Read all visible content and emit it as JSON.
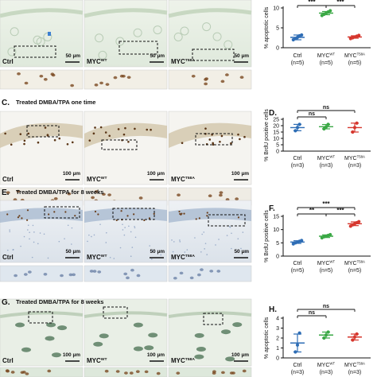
{
  "rows": [
    {
      "panels": [
        {
          "label": "Ctrl",
          "scale": "50 µm"
        },
        {
          "label": "MYC",
          "sup": "WT",
          "scale": "50 µm"
        },
        {
          "label": "MYC",
          "sup": "T58A",
          "scale": "50 µm"
        }
      ]
    },
    {
      "letter": "C.",
      "caption": "Treated DMBA/TPA one time",
      "panels": [
        {
          "label": "Ctrl",
          "scale": "100 µm"
        },
        {
          "label": "MYC",
          "sup": "WT",
          "scale": "100 µm"
        },
        {
          "label": "MYC",
          "sup": "T58A",
          "scale": "100 µm"
        }
      ]
    },
    {
      "letter": "E.",
      "caption": "Treated DMBA/TPA for 8 weeks",
      "panels": [
        {
          "label": "Ctrl",
          "scale": "50 µm"
        },
        {
          "label": "MYC",
          "sup": "WT",
          "scale": "50 µm"
        },
        {
          "label": "MYC",
          "sup": "T58A",
          "scale": "50 µm"
        }
      ]
    },
    {
      "letter": "G.",
      "caption": "Treated DMBA/TPA for 8 weeks",
      "panels": [
        {
          "label": "Ctrl",
          "scale": "100 µm"
        },
        {
          "label": "MYC",
          "sup": "WT",
          "scale": "100 µm"
        },
        {
          "label": "MYC",
          "sup": "T58A",
          "scale": "100 µm"
        }
      ]
    }
  ],
  "colors": {
    "ctrl": "#2e6db5",
    "wt": "#3aa845",
    "t58a": "#d6372e"
  },
  "chart_data": [
    {
      "type": "scatter",
      "ylabel": "% apoptotic cells",
      "ylim": [
        0,
        10
      ],
      "yticks": [
        "0",
        "5",
        "10"
      ],
      "groups": [
        {
          "name": "Ctrl",
          "n": "(n=5)",
          "mean": 2.6,
          "err": 0.6,
          "points": [
            2.0,
            2.3,
            2.6,
            3.0,
            3.2
          ]
        },
        {
          "name": "MYC",
          "sup": "WT",
          "n": "(n=5)",
          "mean": 8.7,
          "err": 0.4,
          "points": [
            8.1,
            8.4,
            8.7,
            9.0,
            9.3
          ]
        },
        {
          "name": "MYC",
          "sup": "T58A",
          "n": "(n=5)",
          "mean": 2.7,
          "err": 0.3,
          "points": [
            2.3,
            2.5,
            2.7,
            2.9,
            3.1
          ]
        }
      ],
      "sig": [
        {
          "a": 0,
          "b": 1,
          "text": "***"
        },
        {
          "a": 1,
          "b": 2,
          "text": "***"
        }
      ]
    },
    {
      "letter": "D.",
      "type": "scatter",
      "ylabel": "% BrdU positive cells",
      "ylim": [
        0,
        25
      ],
      "yticks": [
        "0",
        "5",
        "10",
        "15",
        "20",
        "25"
      ],
      "groups": [
        {
          "name": "Ctrl",
          "n": "(n=3)",
          "mean": 18.5,
          "err": 2.5,
          "points": [
            16.0,
            18.5,
            21.0
          ]
        },
        {
          "name": "MYC",
          "sup": "WT",
          "n": "(n=3)",
          "mean": 19.2,
          "err": 1.7,
          "points": [
            17.5,
            19.0,
            21.0
          ]
        },
        {
          "name": "MYC",
          "sup": "T58A",
          "n": "(n=3)",
          "mean": 18.5,
          "err": 3.5,
          "points": [
            15.0,
            18.5,
            22.0
          ]
        }
      ],
      "sig": [
        {
          "a": 0,
          "b": 1,
          "text": "ns"
        },
        {
          "a": 0,
          "b": 2,
          "text": "ns"
        }
      ]
    },
    {
      "letter": "F.",
      "type": "scatter",
      "ylabel": "% BrdU positive cells",
      "ylim": [
        0,
        15
      ],
      "yticks": [
        "0",
        "5",
        "10",
        "15"
      ],
      "groups": [
        {
          "name": "Ctrl",
          "n": "(n=5)",
          "mean": 5.3,
          "err": 0.5,
          "points": [
            4.6,
            5.0,
            5.3,
            5.6,
            5.9
          ]
        },
        {
          "name": "MYC",
          "sup": "WT",
          "n": "(n=5)",
          "mean": 7.5,
          "err": 0.5,
          "points": [
            6.9,
            7.3,
            7.5,
            7.8,
            8.1
          ]
        },
        {
          "name": "MYC",
          "sup": "T58A",
          "n": "(n=5)",
          "mean": 12.2,
          "err": 0.7,
          "points": [
            11.3,
            11.8,
            12.2,
            12.6,
            13.0
          ]
        }
      ],
      "sig": [
        {
          "a": 0,
          "b": 1,
          "text": "**"
        },
        {
          "a": 1,
          "b": 2,
          "text": "***"
        },
        {
          "a": 0,
          "b": 2,
          "text": "***"
        }
      ]
    },
    {
      "letter": "H.",
      "type": "scatter",
      "ylabel": "% apoptotic cells",
      "ylim": [
        0,
        4
      ],
      "yticks": [
        "0",
        "1",
        "2",
        "3",
        "4"
      ],
      "groups": [
        {
          "name": "Ctrl",
          "n": "(n=3)",
          "mean": 1.5,
          "err": 0.9,
          "points": [
            0.6,
            1.3,
            2.5
          ]
        },
        {
          "name": "MYC",
          "sup": "WT",
          "n": "(n=3)",
          "mean": 2.3,
          "err": 0.3,
          "points": [
            2.0,
            2.3,
            2.6
          ]
        },
        {
          "name": "MYC",
          "sup": "T58A",
          "n": "(n=3)",
          "mean": 2.1,
          "err": 0.3,
          "points": [
            1.8,
            2.1,
            2.4
          ]
        }
      ],
      "sig": [
        {
          "a": 0,
          "b": 1,
          "text": "ns"
        },
        {
          "a": 0,
          "b": 2,
          "text": "ns"
        }
      ]
    }
  ]
}
